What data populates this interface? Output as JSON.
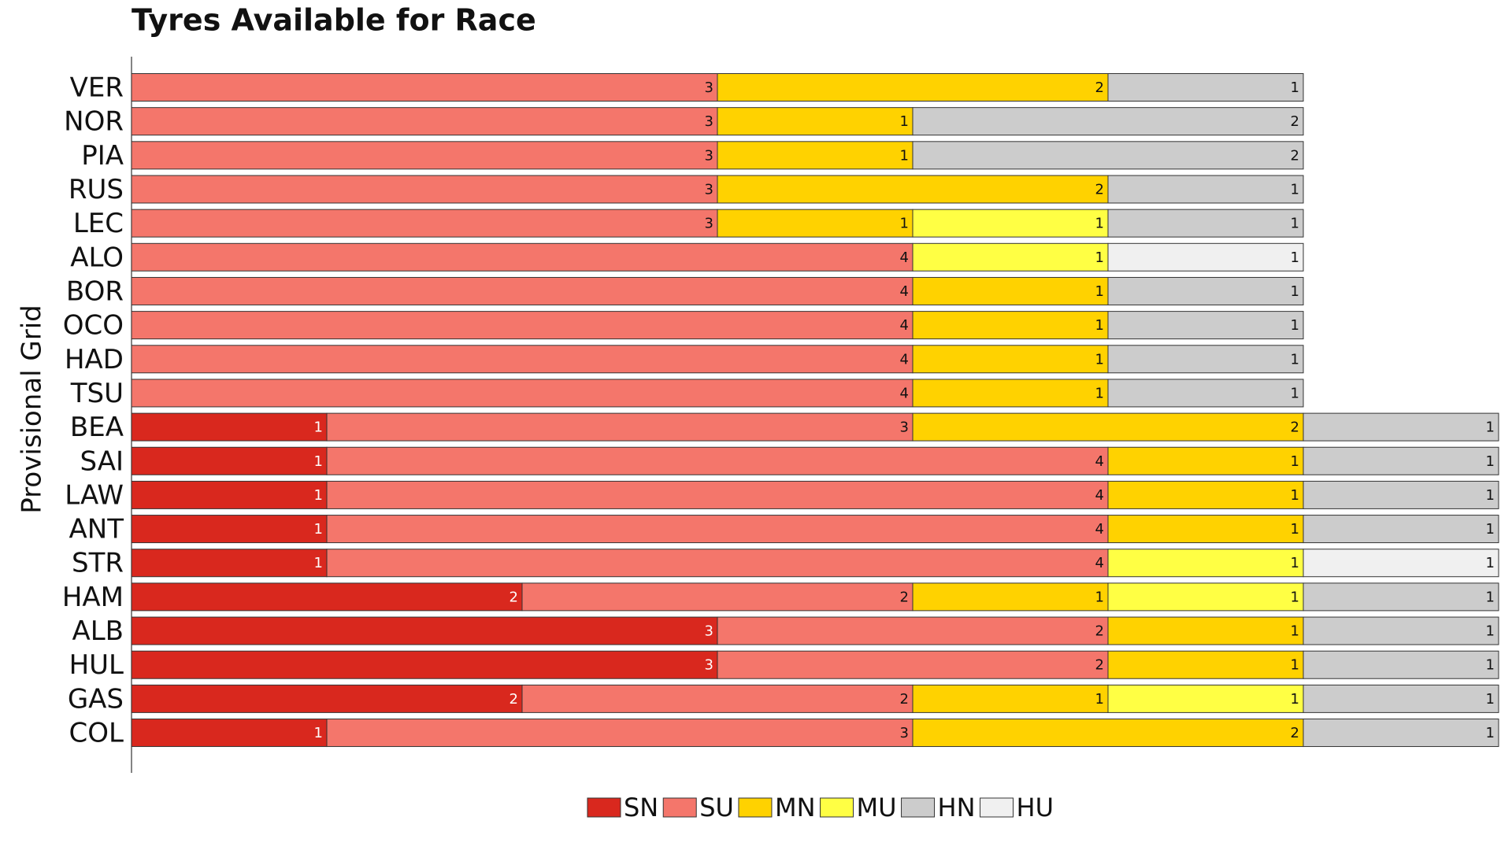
{
  "chart_data": {
    "type": "stacked-barh",
    "title": "Tyres Available for Race",
    "ylabel": "Provisional Grid",
    "categories": [
      "VER",
      "NOR",
      "PIA",
      "RUS",
      "LEC",
      "ALO",
      "BOR",
      "OCO",
      "HAD",
      "TSU",
      "BEA",
      "SAI",
      "LAW",
      "ANT",
      "STR",
      "HAM",
      "ALB",
      "HUL",
      "GAS",
      "COL"
    ],
    "xlim": [
      0,
      7
    ],
    "legend": "bottom",
    "series": [
      {
        "name": "SN",
        "color": "#d9281e",
        "values": [
          null,
          null,
          null,
          null,
          null,
          null,
          null,
          null,
          null,
          null,
          1,
          1,
          1,
          1,
          1,
          2,
          3,
          3,
          2,
          1
        ]
      },
      {
        "name": "SU",
        "color": "#f4766b",
        "values": [
          3,
          3,
          3,
          3,
          3,
          4,
          4,
          4,
          4,
          4,
          3,
          4,
          4,
          4,
          4,
          2,
          2,
          2,
          2,
          3
        ]
      },
      {
        "name": "MN",
        "color": "#ffd200",
        "values": [
          2,
          1,
          1,
          2,
          1,
          null,
          1,
          1,
          1,
          1,
          2,
          1,
          1,
          1,
          null,
          1,
          1,
          1,
          1,
          2
        ]
      },
      {
        "name": "MU",
        "color": "#ffff44",
        "values": [
          null,
          null,
          null,
          null,
          1,
          1,
          null,
          null,
          null,
          null,
          null,
          null,
          null,
          null,
          1,
          1,
          null,
          null,
          1,
          null
        ]
      },
      {
        "name": "HN",
        "color": "#cccccc",
        "values": [
          1,
          2,
          2,
          1,
          1,
          null,
          1,
          1,
          1,
          1,
          1,
          1,
          1,
          1,
          null,
          1,
          1,
          1,
          1,
          1
        ]
      },
      {
        "name": "HU",
        "color": "#f0f0f0",
        "values": [
          null,
          null,
          null,
          null,
          null,
          1,
          null,
          null,
          null,
          null,
          null,
          null,
          null,
          null,
          1,
          null,
          null,
          null,
          null,
          null
        ]
      }
    ]
  }
}
